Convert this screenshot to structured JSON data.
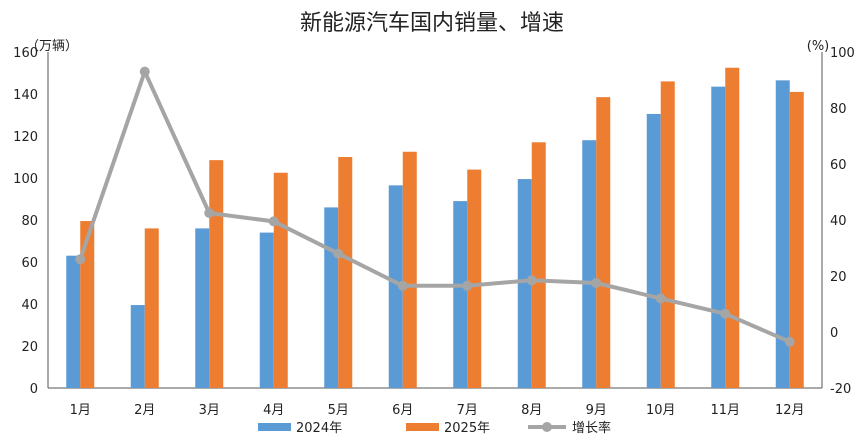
{
  "chart_data": {
    "type": "bar",
    "title": "新能源汽车国内销量、增速",
    "categories": [
      "1月",
      "2月",
      "3月",
      "4月",
      "5月",
      "6月",
      "7月",
      "8月",
      "9月",
      "10月",
      "11月",
      "12月"
    ],
    "series": [
      {
        "name": "2024年",
        "type": "bar",
        "axis": "left",
        "color": "#5B9BD5",
        "values": [
          63,
          39.5,
          76,
          74,
          86,
          96.5,
          89,
          99.5,
          118,
          130.5,
          143.5,
          146.5
        ]
      },
      {
        "name": "2025年",
        "type": "bar",
        "axis": "left",
        "color": "#ED7D31",
        "values": [
          79.5,
          76,
          108.5,
          102.5,
          110,
          112.5,
          104,
          117,
          138.5,
          146,
          152.5,
          141
        ]
      },
      {
        "name": "增长率",
        "type": "line",
        "axis": "right",
        "color": "#A5A5A5",
        "values": [
          26,
          93,
          42.5,
          39.5,
          28,
          16.5,
          16.5,
          18.5,
          17.5,
          12,
          6.5,
          -3.5
        ]
      }
    ],
    "y_left": {
      "unit": "（万辆）",
      "min": 0,
      "max": 160,
      "ticks": [
        "0",
        "20",
        "40",
        "60",
        "80",
        "100",
        "120",
        "140",
        "160"
      ]
    },
    "y_right": {
      "unit": "(%)",
      "min": -20,
      "max": 100,
      "ticks": [
        "-20",
        "0",
        "20",
        "40",
        "60",
        "80",
        "100"
      ],
      "negative_color": "#FF0000"
    },
    "grid": false,
    "legend_position": "bottom"
  }
}
